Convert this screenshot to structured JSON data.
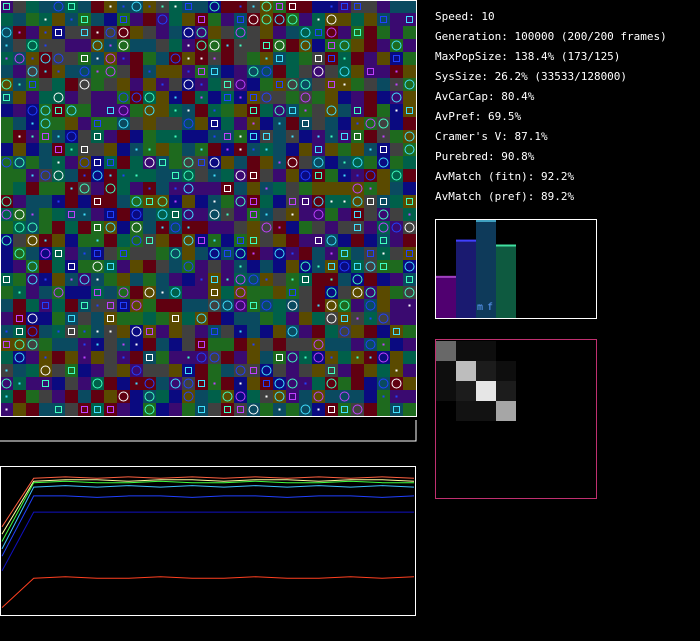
{
  "stats": [
    "Speed: 10",
    "Generation: 100000 (200/200 frames)",
    "MaxPopSize: 138.4% (173/125)",
    "SysSize: 26.2% (33533/128000)",
    "AvCarCap: 80.4%",
    "AvPref: 69.5%",
    "Cramer's V: 87.1%",
    "Purebred: 90.8%",
    "AvMatch (fitn): 92.2%",
    "AvMatch (pref): 89.2%"
  ],
  "histogram": {
    "labels": [
      "m",
      "f"
    ],
    "ylim": [
      0,
      1
    ],
    "values": [
      0.43,
      0.8,
      1.0,
      0.75
    ],
    "colors": [
      "#500070",
      "#1a1a70",
      "#0e3a5a",
      "#0e5a40"
    ],
    "tops": [
      "#a040c0",
      "#4040ff",
      "#40a0c0",
      "#40e0a0"
    ]
  },
  "matrix": [
    [
      0.45,
      0.06,
      0.06,
      0.0
    ],
    [
      0.06,
      0.82,
      0.12,
      0.06
    ],
    [
      0.06,
      0.12,
      1.0,
      0.12
    ],
    [
      0.0,
      0.08,
      0.08,
      0.72
    ]
  ],
  "graph": {
    "ylim": [
      0,
      1
    ],
    "series": [
      {
        "color": "#ff6040",
        "values": [
          0.6,
          0.93,
          0.94,
          0.93,
          0.94,
          0.93,
          0.94,
          0.93,
          0.94,
          0.93,
          0.94,
          0.93,
          0.94,
          0.93
        ]
      },
      {
        "color": "#ffffa0",
        "values": [
          0.55,
          0.91,
          0.92,
          0.92,
          0.91,
          0.92,
          0.92,
          0.91,
          0.92,
          0.92,
          0.91,
          0.92,
          0.92,
          0.91
        ]
      },
      {
        "color": "#40ff40",
        "values": [
          0.5,
          0.9,
          0.91,
          0.9,
          0.9,
          0.91,
          0.9,
          0.9,
          0.91,
          0.9,
          0.9,
          0.91,
          0.9,
          0.9
        ]
      },
      {
        "color": "#40c0ff",
        "values": [
          0.45,
          0.87,
          0.88,
          0.87,
          0.88,
          0.87,
          0.88,
          0.87,
          0.88,
          0.87,
          0.88,
          0.87,
          0.88,
          0.87
        ]
      },
      {
        "color": "#2040ff",
        "values": [
          0.4,
          0.81,
          0.81,
          0.8,
          0.81,
          0.81,
          0.8,
          0.81,
          0.81,
          0.8,
          0.81,
          0.81,
          0.8,
          0.81
        ]
      },
      {
        "color": "#1010c0",
        "values": [
          0.3,
          0.7,
          0.7,
          0.7,
          0.7,
          0.7,
          0.7,
          0.7,
          0.7,
          0.7,
          0.7,
          0.7,
          0.7,
          0.7
        ]
      },
      {
        "color": "#ff4020",
        "values": [
          0.05,
          0.25,
          0.26,
          0.25,
          0.25,
          0.26,
          0.25,
          0.25,
          0.26,
          0.25,
          0.25,
          0.26,
          0.25,
          0.26
        ]
      }
    ]
  }
}
